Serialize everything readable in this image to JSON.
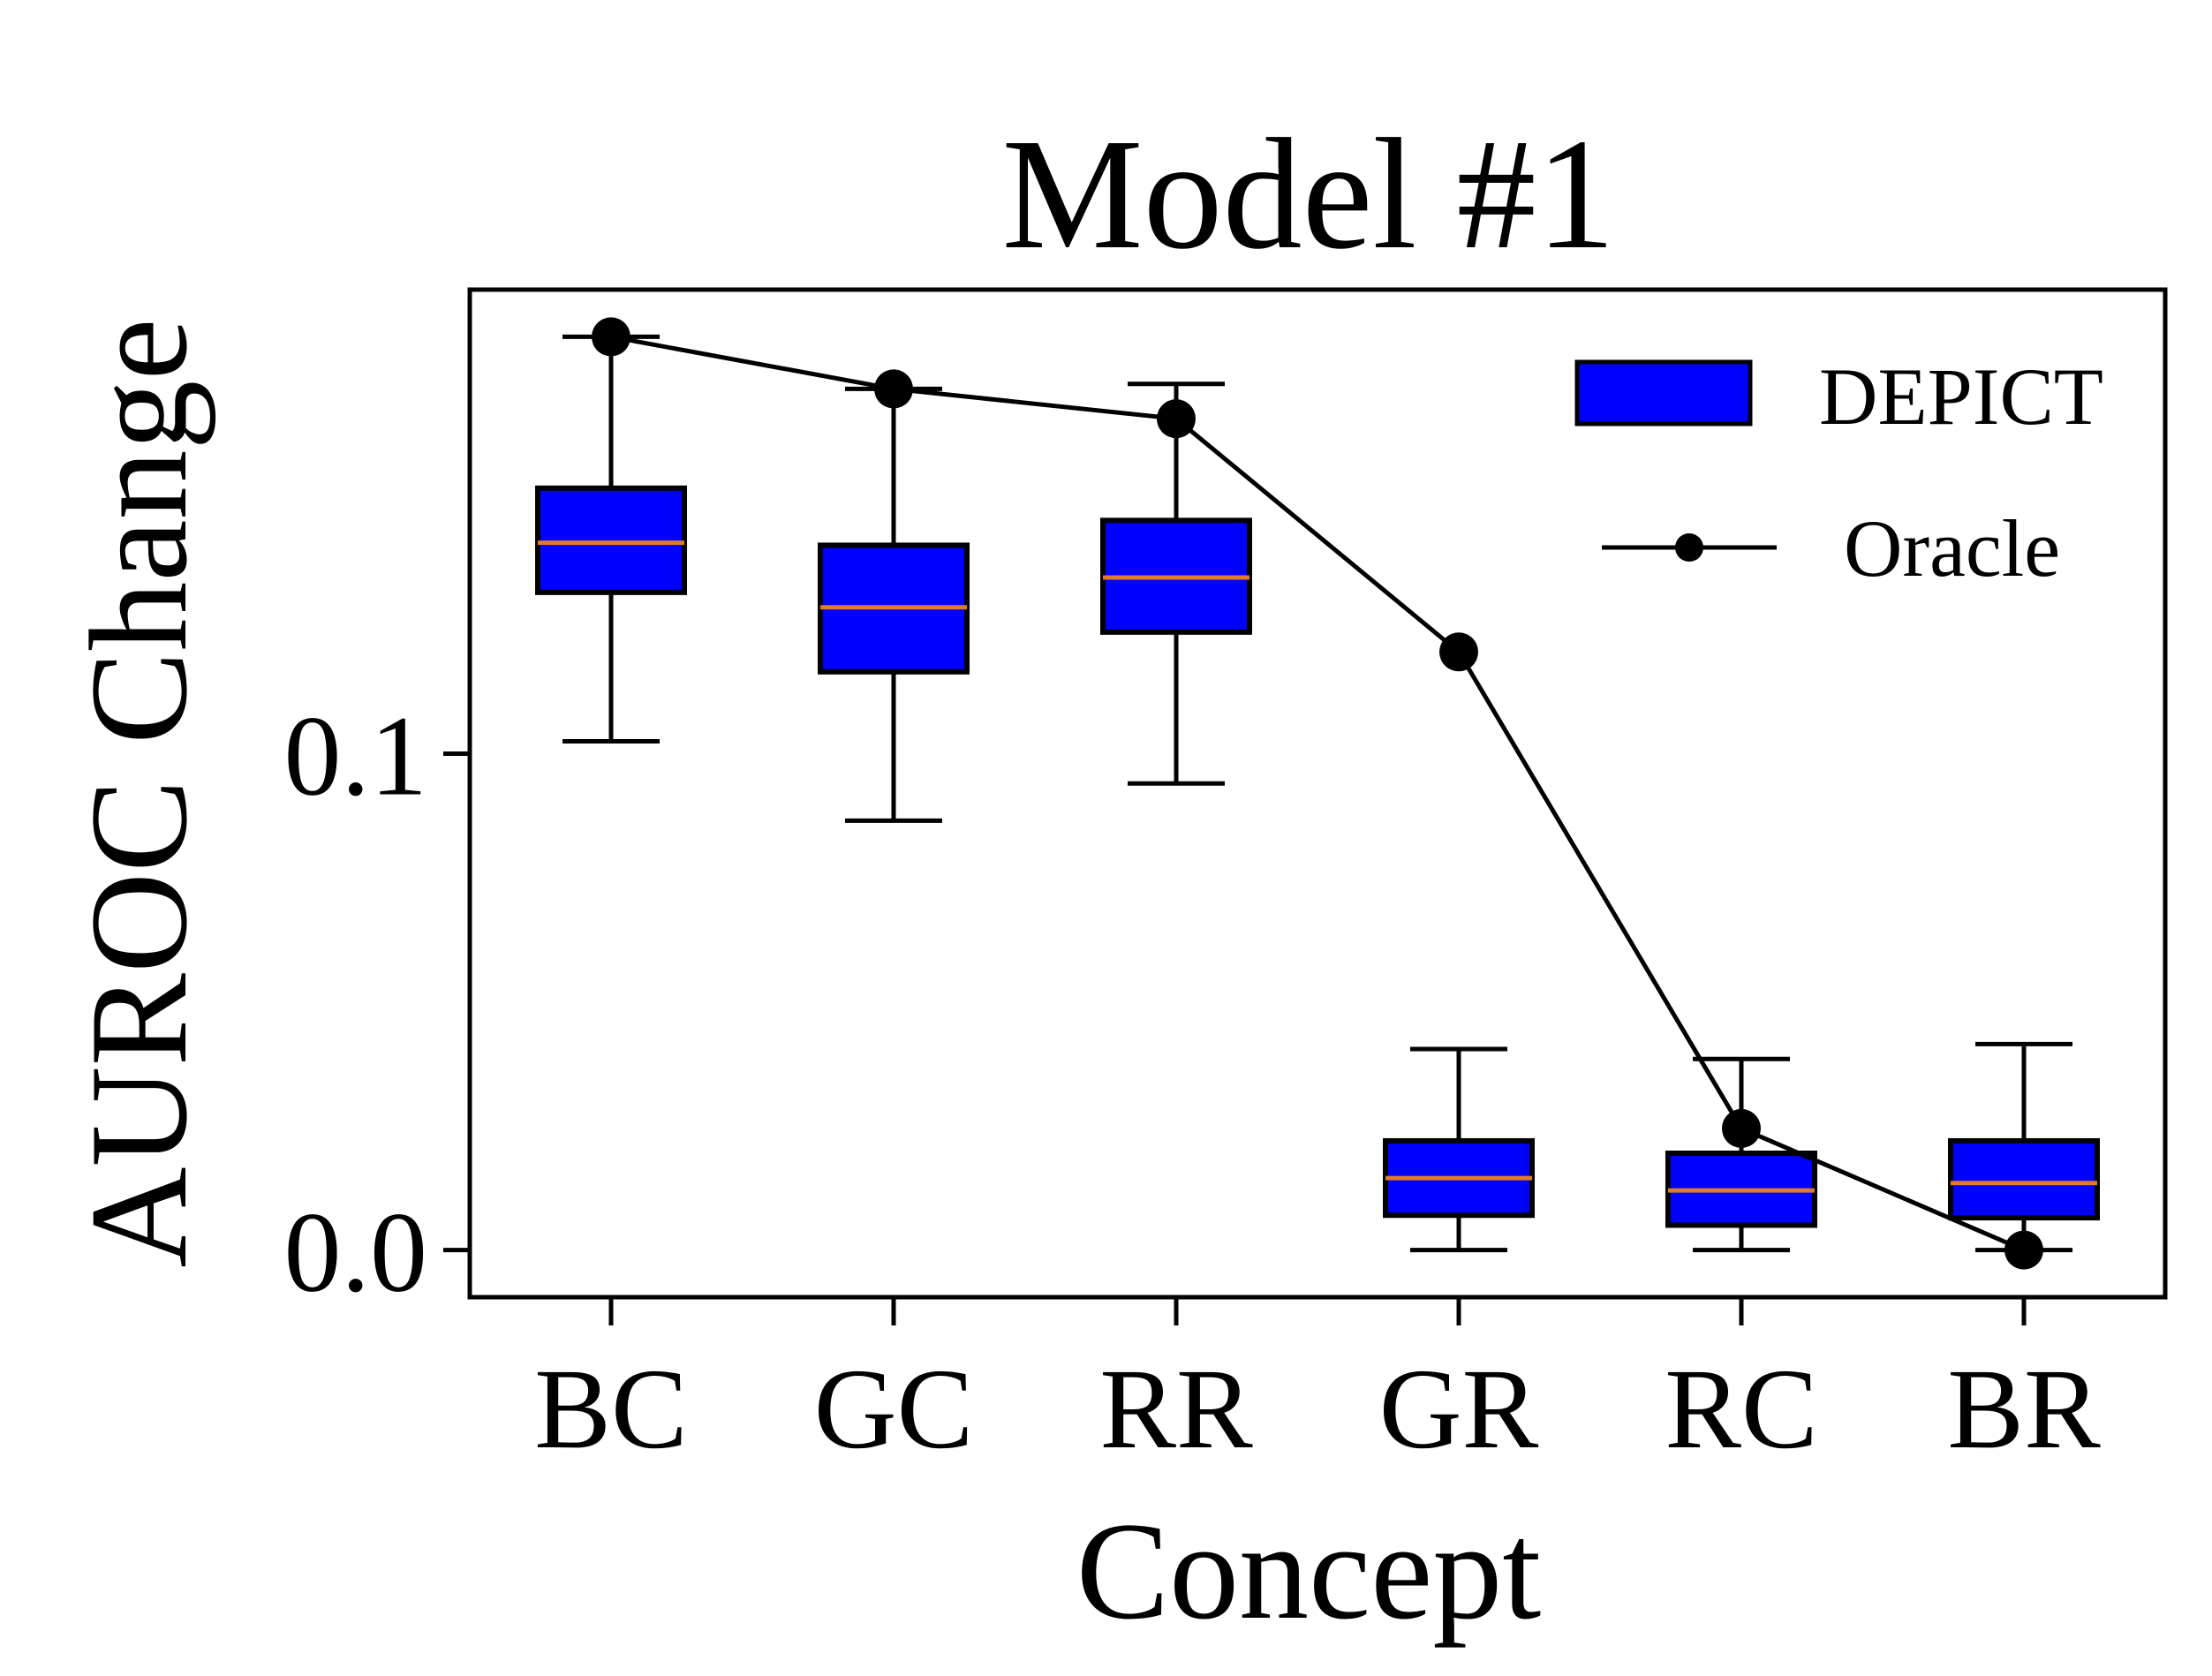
{
  "chart_data": {
    "type": "box",
    "title": "Model #1",
    "xlabel": "Concept",
    "ylabel": "AUROC Change",
    "categories": [
      "BC",
      "GC",
      "RR",
      "GR",
      "RC",
      "BR"
    ],
    "ylim": [
      -0.0095,
      0.1935
    ],
    "yticks": [
      {
        "value": 0.0,
        "label": "0.0"
      },
      {
        "value": 0.1,
        "label": "0.1"
      }
    ],
    "legend": {
      "position": "top-right",
      "entries": [
        {
          "label": "DEPICT",
          "kind": "box"
        },
        {
          "label": "Oracle",
          "kind": "line-marker"
        }
      ]
    },
    "series": [
      {
        "name": "DEPICT",
        "kind": "box",
        "color": "#0000ff",
        "edge_color": "#000000",
        "median_color": "#e07b2a",
        "boxes": [
          {
            "category": "BC",
            "whisker_low": 0.1025,
            "q1": 0.1325,
            "median": 0.1425,
            "q3": 0.1535,
            "whisker_high": 0.184
          },
          {
            "category": "GC",
            "whisker_low": 0.0865,
            "q1": 0.1165,
            "median": 0.1295,
            "q3": 0.142,
            "whisker_high": 0.1735
          },
          {
            "category": "RR",
            "whisker_low": 0.094,
            "q1": 0.1245,
            "median": 0.1355,
            "q3": 0.147,
            "whisker_high": 0.1745
          },
          {
            "category": "GR",
            "whisker_low": 0.0,
            "q1": 0.007,
            "median": 0.0145,
            "q3": 0.022,
            "whisker_high": 0.0405
          },
          {
            "category": "RC",
            "whisker_low": 0.0,
            "q1": 0.005,
            "median": 0.012,
            "q3": 0.0195,
            "whisker_high": 0.0385
          },
          {
            "category": "BR",
            "whisker_low": 0.0,
            "q1": 0.0065,
            "median": 0.0135,
            "q3": 0.022,
            "whisker_high": 0.0415
          }
        ]
      },
      {
        "name": "Oracle",
        "kind": "line",
        "color": "#000000",
        "values": [
          0.184,
          0.1735,
          0.1675,
          0.1205,
          0.0245,
          0.0
        ]
      }
    ]
  }
}
